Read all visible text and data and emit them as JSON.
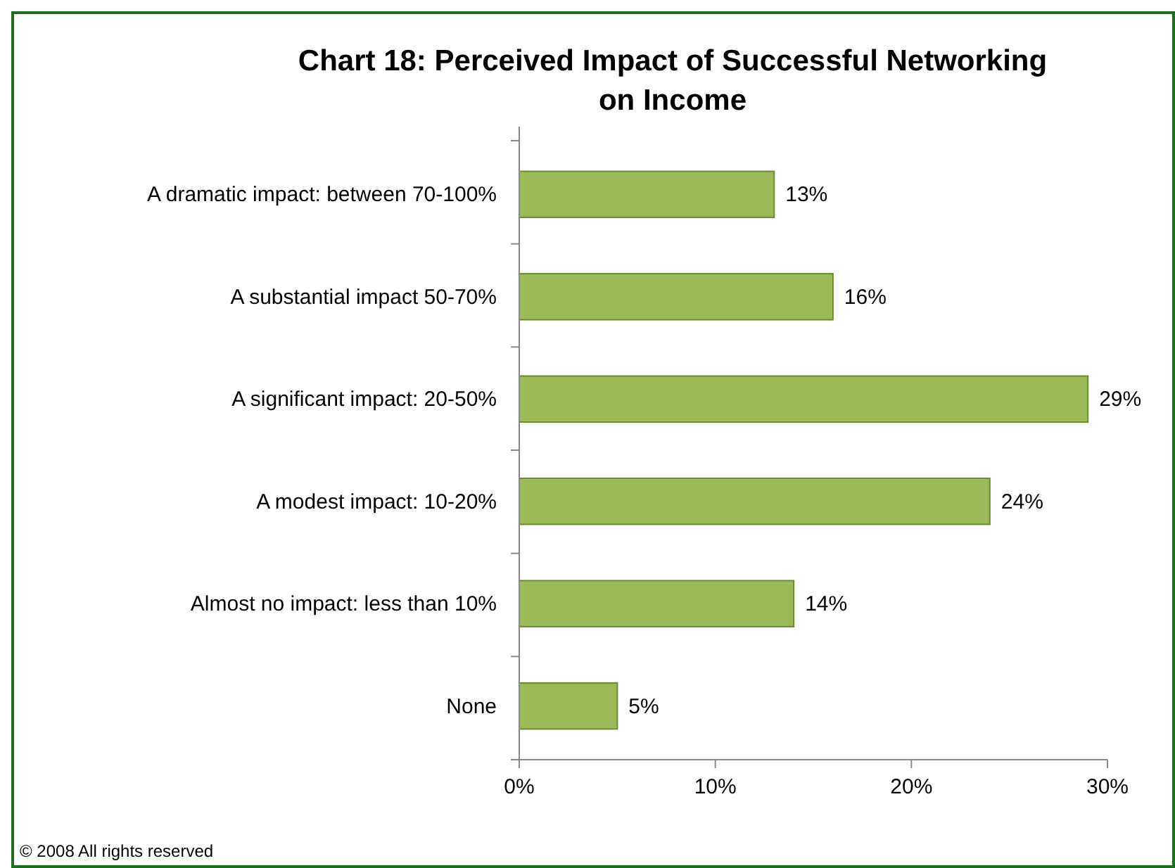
{
  "chart_data": {
    "type": "bar",
    "orientation": "horizontal",
    "title": "Chart 18: Perceived Impact of Successful Networking on Income",
    "categories": [
      "A dramatic impact: between 70-100%",
      "A substantial impact 50-70%",
      "A significant impact: 20-50%",
      "A modest impact: 10-20%",
      "Almost no impact: less than 10%",
      "None"
    ],
    "values": [
      13,
      16,
      29,
      24,
      14,
      5
    ],
    "color": "#9bbb59",
    "value_labels": [
      "13%",
      "16%",
      "29%",
      "24%",
      "14%",
      "5%"
    ],
    "xlim": [
      0,
      30
    ],
    "xticks": [
      {
        "value": 0,
        "label": "0%"
      },
      {
        "value": 10,
        "label": "10%"
      },
      {
        "value": 20,
        "label": "20%"
      },
      {
        "value": 30,
        "label": "30%"
      }
    ],
    "grid": false,
    "annotations": [
      "© 2008 All rights reserved"
    ]
  }
}
